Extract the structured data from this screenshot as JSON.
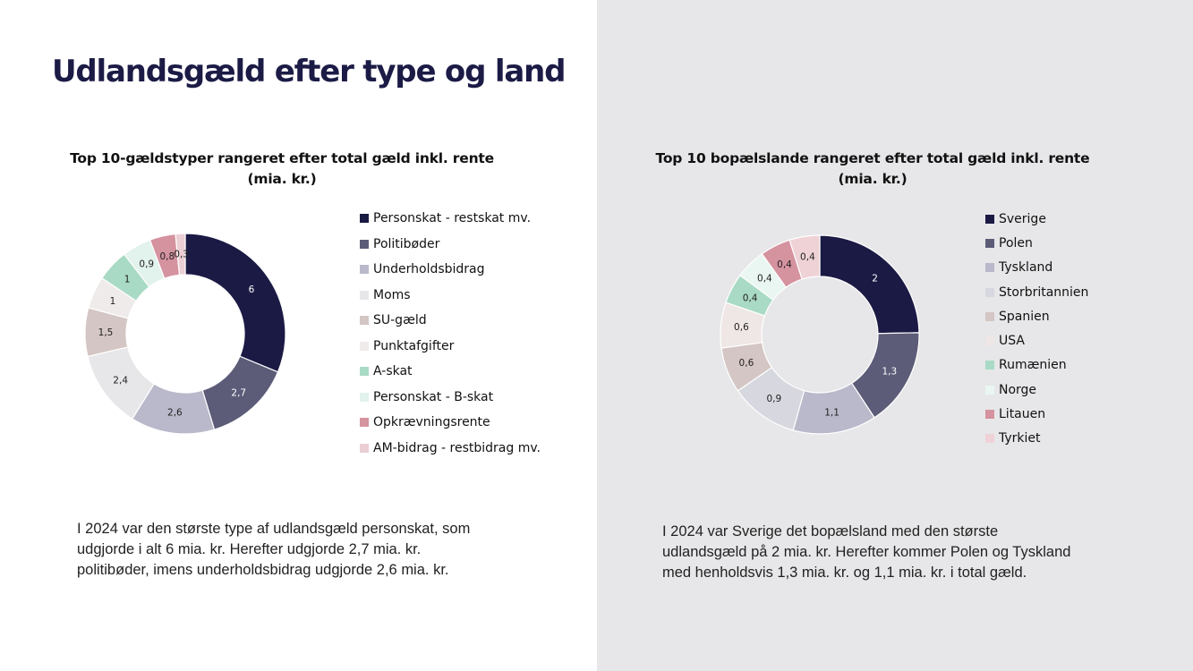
{
  "page": {
    "title": "Udlandsgæld efter type og land"
  },
  "left": {
    "chart_title_line1": "Top 10-gældstyper rangeret efter total gæld inkl. rente",
    "chart_title_line2": "(mia. kr.)",
    "text_lines": [
      "I 2024 var den største type af udlandsgæld personskat, som",
      "udgjorde i alt 6 mia. kr. Herefter udgjorde 2,7 mia. kr.",
      "politibøder, imens underholdsbidrag udgjorde 2,6 mia. kr."
    ]
  },
  "right": {
    "chart_title_line1": "Top 10 bopælslande rangeret efter total gæld inkl. rente",
    "chart_title_line2": "(mia. kr.)",
    "text_lines": [
      "I 2024 var Sverige det bopælsland med den største",
      "udlandsgæld på 2 mia. kr. Herefter kommer Polen og Tyskland",
      "med henholdsvis 1,3 mia. kr. og 1,1 mia. kr. i total gæld."
    ]
  },
  "chart_data": [
    {
      "type": "pie",
      "variant": "donut",
      "title": "Top 10-gældstyper rangeret efter total gæld inkl. rente (mia. kr.)",
      "legend_position": "right",
      "categories": [
        "Personskat - restskat mv.",
        "Politibøder",
        "Underholdsbidrag",
        "Moms",
        "SU-gæld",
        "Punktafgifter",
        "A-skat",
        "Personskat - B-skat",
        "Opkrævningsrente",
        "AM-bidrag - restbidrag mv."
      ],
      "values": [
        6,
        2.7,
        2.6,
        2.4,
        1.5,
        1,
        1,
        0.9,
        0.8,
        0.3
      ],
      "labels": [
        "6",
        "2,7",
        "2,6",
        "2,4",
        "1,5",
        "1",
        "1",
        "0,9",
        "0,8",
        "0,3"
      ],
      "colors": [
        "#1b1a45",
        "#5c5c78",
        "#b9b9cb",
        "#e7e7ea",
        "#d4c6c4",
        "#f0ebeb",
        "#a9dac5",
        "#e2f2ec",
        "#d5929f",
        "#ebcfd4"
      ]
    },
    {
      "type": "pie",
      "variant": "donut",
      "title": "Top 10 bopælslande rangeret efter total gæld inkl. rente (mia. kr.)",
      "legend_position": "right",
      "categories": [
        "Sverige",
        "Polen",
        "Tyskland",
        "Storbritannien",
        "Spanien",
        "USA",
        "Rumænien",
        "Norge",
        "Litauen",
        "Tyrkiet"
      ],
      "values": [
        2,
        1.3,
        1.1,
        0.9,
        0.6,
        0.6,
        0.4,
        0.4,
        0.4,
        0.4
      ],
      "labels": [
        "2",
        "1,3",
        "1,1",
        "0,9",
        "0,6",
        "0,6",
        "0,4",
        "0,4",
        "0,4",
        "0,4"
      ],
      "colors": [
        "#1b1a45",
        "#5c5c78",
        "#b9b9cb",
        "#d7d7df",
        "#d4c6c4",
        "#efe6e6",
        "#a9dac5",
        "#eaf6f1",
        "#d5929f",
        "#efd2d6"
      ]
    }
  ]
}
